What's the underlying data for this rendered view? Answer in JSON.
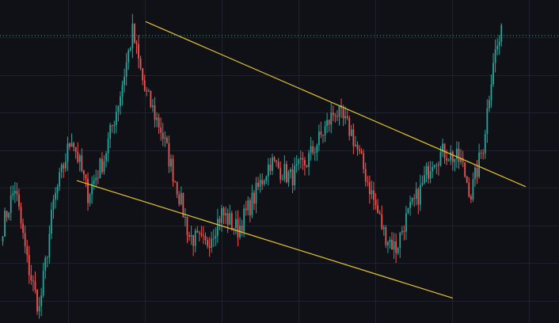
{
  "chart_data": {
    "type": "candlestick",
    "colors": {
      "background": "#0f1117",
      "grid": "#1e222d",
      "bull": "#26a69a",
      "bear": "#ef5350",
      "trendline": "#e6c229",
      "price_line": "#5d9e96"
    },
    "grid": true,
    "axes_visible": false,
    "ylim": [
      0,
      100
    ],
    "price_line": {
      "value": 89
    },
    "anchors": [
      [
        0,
        30
      ],
      [
        6,
        42
      ],
      [
        12,
        19
      ],
      [
        18,
        4
      ],
      [
        25,
        37
      ],
      [
        34,
        58
      ],
      [
        42,
        40
      ],
      [
        50,
        51
      ],
      [
        58,
        71
      ],
      [
        64,
        90
      ],
      [
        70,
        72
      ],
      [
        78,
        60
      ],
      [
        86,
        42
      ],
      [
        92,
        27
      ],
      [
        100,
        24
      ],
      [
        108,
        34
      ],
      [
        116,
        29
      ],
      [
        124,
        39
      ],
      [
        132,
        50
      ],
      [
        142,
        45
      ],
      [
        150,
        50
      ],
      [
        158,
        59
      ],
      [
        164,
        66
      ],
      [
        172,
        59
      ],
      [
        180,
        44
      ],
      [
        188,
        28
      ],
      [
        194,
        23
      ],
      [
        198,
        31
      ],
      [
        206,
        41
      ],
      [
        212,
        51
      ],
      [
        218,
        53
      ],
      [
        226,
        50
      ],
      [
        231,
        40
      ],
      [
        237,
        55
      ],
      [
        242,
        82
      ],
      [
        246,
        89
      ]
    ],
    "trendlines": [
      {
        "name": "upper",
        "x1": 70.5,
        "y1": 93.3,
        "x2": 258,
        "y2": 42.2
      },
      {
        "name": "lower",
        "x1": 36.5,
        "y1": 44.1,
        "x2": 222,
        "y2": 7.7
      }
    ],
    "candle_count": 247
  }
}
